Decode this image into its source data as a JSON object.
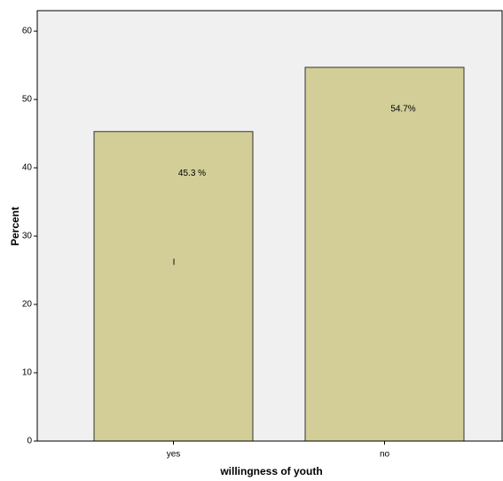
{
  "chart_data": {
    "type": "bar",
    "categories": [
      "yes",
      "no"
    ],
    "values": [
      45.3,
      54.7
    ],
    "value_labels": [
      "45.3 %",
      "54.7%"
    ],
    "color": "#d3ce97",
    "xlabel": "willingness of youth",
    "ylabel": "Percent",
    "ylim": [
      0,
      63
    ],
    "yticks": [
      0,
      10,
      20,
      30,
      40,
      50,
      60
    ],
    "annotation": "I"
  }
}
